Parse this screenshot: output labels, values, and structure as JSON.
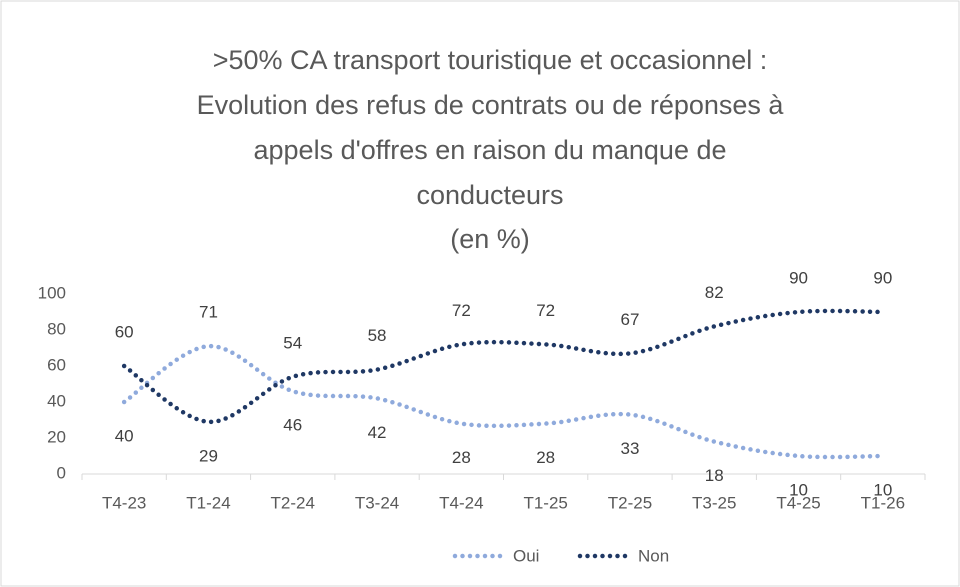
{
  "chart_data": {
    "type": "line",
    "title": [
      ">50% CA transport touristique et occasionnel :",
      "Evolution des refus de contrats ou de réponses à",
      "appels d'offres en raison du manque de",
      "conducteurs",
      "(en %)"
    ],
    "categories": [
      "T4-23",
      "T1-24",
      "T2-24",
      "T3-24",
      "T4-24",
      "T1-25",
      "T2-25",
      "T3-25",
      "T4-25",
      "T1-26"
    ],
    "series": [
      {
        "name": "Oui",
        "color": "#8faadc",
        "values": [
          40,
          71,
          46,
          42,
          28,
          28,
          33,
          18,
          10,
          10
        ]
      },
      {
        "name": "Non",
        "color": "#1f3864",
        "values": [
          60,
          29,
          54,
          58,
          72,
          72,
          67,
          82,
          90,
          90
        ]
      }
    ],
    "ylim": [
      0,
      100
    ],
    "yticks": [
      0,
      20,
      40,
      60,
      80,
      100
    ],
    "grid": false,
    "legend": "bottom"
  }
}
